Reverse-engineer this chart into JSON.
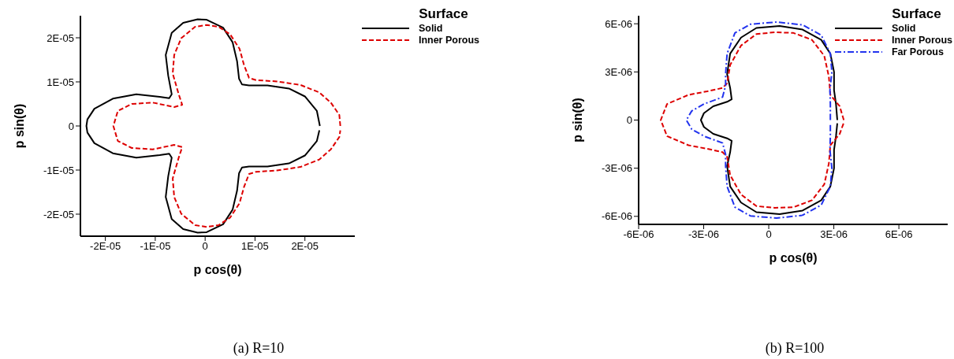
{
  "chart_data": [
    {
      "type": "line",
      "xlabel": "p cos(θ)",
      "ylabel": "p sin(θ)",
      "legend_title": "Surface",
      "legend": "top right",
      "annotations": [
        "(a) R=10"
      ],
      "xlim": [
        -2.5e-05,
        3e-05
      ],
      "ylim": [
        -2.5e-05,
        2.5e-05
      ],
      "xticks": [
        {
          "value": -2e-05,
          "label": "-2E-05"
        },
        {
          "value": -1e-05,
          "label": "-1E-05"
        },
        0,
        {
          "value": 1e-05,
          "label": "1E-05"
        },
        {
          "value": 2e-05,
          "label": "2E-05"
        }
      ],
      "yticks": [
        {
          "value": -2e-05,
          "label": "-2E-05"
        },
        {
          "value": -1e-05,
          "label": "-1E-05"
        },
        0,
        {
          "value": 1e-05,
          "label": "1E-05"
        },
        {
          "value": 2e-05,
          "label": "2E-05"
        }
      ],
      "series": [
        {
          "name": "Solid",
          "color": "#000000",
          "line_style": "solid",
          "x": [
            2.3e-05,
            2.24e-05,
            2e-05,
            1.68e-05,
            1.25e-05,
            8.8e-06,
            7.4e-06,
            6.8e-06,
            6.4e-06,
            5.5e-06,
            3.6e-06,
            3e-07,
            -1.5e-06,
            -4.4e-06,
            -6.7e-06,
            -7.9e-06,
            -7.4e-06,
            -6.7e-06,
            -7.2e-06,
            -9.1e-06,
            -1.38e-05,
            -1.85e-05,
            -2.22e-05,
            -2.36e-05,
            -2.38e-05,
            -2.36e-05,
            -2.22e-05,
            -1.85e-05,
            -1.38e-05,
            -9.1e-06,
            -7.2e-06,
            -6.7e-06,
            -7.4e-06,
            -7.9e-06,
            -6.7e-06,
            -4.4e-06,
            -1.5e-06,
            3e-07,
            3.6e-06,
            5.5e-06,
            6.4e-06,
            6.8e-06,
            7.4e-06,
            8.8e-06,
            1.25e-05,
            1.68e-05,
            2e-05,
            2.24e-05,
            2.29e-05
          ],
          "values": [
            0,
            3.4e-06,
            6.7e-06,
            8.5e-06,
            9.2e-06,
            9.2e-06,
            9.4e-06,
            1.07e-05,
            1.47e-05,
            1.9e-05,
            2.23e-05,
            2.41e-05,
            2.42e-05,
            2.34e-05,
            2.11e-05,
            1.61e-05,
            1.14e-05,
            7.2e-06,
            6.3e-06,
            6.6e-06,
            7.2e-06,
            6.2e-06,
            3.9e-06,
            1.5e-06,
            0,
            -1.5e-06,
            -3.9e-06,
            -6.2e-06,
            -7.2e-06,
            -6.6e-06,
            -6.3e-06,
            -7.2e-06,
            -1.14e-05,
            -1.61e-05,
            -2.11e-05,
            -2.34e-05,
            -2.42e-05,
            -2.41e-05,
            -2.23e-05,
            -1.9e-05,
            -1.47e-05,
            -1.07e-05,
            -9.4e-06,
            -9.2e-06,
            -9.2e-06,
            -8.5e-06,
            -6.7e-06,
            -3.4e-06,
            -1e-06
          ]
        },
        {
          "name": "Inner Porous",
          "color": "#dd0000",
          "line_style": "dashed",
          "x": [
            2.71e-05,
            2.69e-05,
            2.52e-05,
            2.29e-05,
            1.91e-05,
            1.44e-05,
            1.02e-05,
            8.8e-06,
            7.8e-06,
            6.9e-06,
            5e-06,
            2.7e-06,
            3e-07,
            -2e-06,
            -4.8e-06,
            -6.2e-06,
            -6.5e-06,
            -5.3e-06,
            -4.6e-06,
            -6.2e-06,
            -1.05e-05,
            -1.47e-05,
            -1.75e-05,
            -1.84e-05,
            -1.75e-05,
            -1.47e-05,
            -1.05e-05,
            -6.2e-06,
            -4.6e-06,
            -5.3e-06,
            -6.5e-06,
            -6.2e-06,
            -4.8e-06,
            -2e-06,
            3e-07,
            2.7e-06,
            5e-06,
            6.9e-06,
            7.8e-06,
            8.8e-06,
            1.02e-05,
            1.44e-05,
            1.91e-05,
            2.29e-05,
            2.52e-05,
            2.69e-05,
            2.71e-05
          ],
          "values": [
            0,
            2.5e-06,
            5.3e-06,
            7.6e-06,
            9.3e-06,
            1.01e-05,
            1.04e-05,
            1.09e-05,
            1.38e-05,
            1.75e-05,
            2.08e-05,
            2.25e-05,
            2.29e-05,
            2.25e-05,
            1.99e-05,
            1.61e-05,
            1.19e-05,
            7.2e-06,
            4.8e-06,
            4.3e-06,
            5.3e-06,
            5e-06,
            3.4e-06,
            0,
            -3.4e-06,
            -5e-06,
            -5.3e-06,
            -4.3e-06,
            -4.8e-06,
            -7.2e-06,
            -1.19e-05,
            -1.61e-05,
            -1.99e-05,
            -2.25e-05,
            -2.29e-05,
            -2.25e-05,
            -2.08e-05,
            -1.75e-05,
            -1.38e-05,
            -1.09e-05,
            -1.04e-05,
            -1.01e-05,
            -9.3e-06,
            -7.6e-06,
            -5.3e-06,
            -2.5e-06,
            -1e-06
          ]
        }
      ]
    },
    {
      "type": "line",
      "xlabel": "p cos(θ)",
      "ylabel": "p sin(θ)",
      "legend_title": "Surface",
      "legend": "top right",
      "annotations": [
        "(b) R=100"
      ],
      "xlim": [
        -6e-06,
        8.25e-06
      ],
      "ylim": [
        -6.5e-06,
        6.5e-06
      ],
      "xticks": [
        {
          "value": -6e-06,
          "label": "-6E-06"
        },
        {
          "value": -3e-06,
          "label": "-3E-06"
        },
        0,
        {
          "value": 3e-06,
          "label": "3E-06"
        },
        {
          "value": 6e-06,
          "label": "6E-06"
        }
      ],
      "yticks": [
        {
          "value": -6e-06,
          "label": "-6E-06"
        },
        {
          "value": -3e-06,
          "label": "-3E-06"
        },
        0,
        {
          "value": 3e-06,
          "label": "3E-06"
        },
        {
          "value": 6e-06,
          "label": "6E-06"
        }
      ],
      "series": [
        {
          "name": "Solid",
          "color": "#000000",
          "line_style": "solid",
          "x": [
            3.16e-06,
            3.1e-06,
            3.01e-06,
            3.01e-06,
            2.84e-06,
            2.42e-06,
            1.56e-06,
            5e-07,
            -5.7e-07,
            -1.28e-06,
            -1.78e-06,
            -1.92e-06,
            -1.78e-06,
            -1.71e-06,
            -1.92e-06,
            -2.56e-06,
            -2.99e-06,
            -3.13e-06,
            -2.99e-06,
            -2.56e-06,
            -1.92e-06,
            -1.71e-06,
            -1.78e-06,
            -1.92e-06,
            -1.78e-06,
            -1.28e-06,
            -5.7e-07,
            5e-07,
            1.56e-06,
            2.42e-06,
            2.84e-06,
            3.01e-06,
            3.01e-06,
            3.1e-06,
            3.16e-06
          ],
          "values": [
            0,
            1e-06,
            1.86e-06,
            3e-06,
            4.14e-06,
            5e-06,
            5.64e-06,
            5.86e-06,
            5.74e-06,
            5.14e-06,
            4.14e-06,
            2.86e-06,
            2e-06,
            1.29e-06,
            1.14e-06,
            8.6e-07,
            4.3e-07,
            0,
            -4.3e-07,
            -8.6e-07,
            -1.14e-06,
            -1.29e-06,
            -2e-06,
            -2.86e-06,
            -4.14e-06,
            -5.14e-06,
            -5.74e-06,
            -5.86e-06,
            -5.64e-06,
            -5e-06,
            -4.14e-06,
            -3e-06,
            -1.86e-06,
            -1e-06,
            -2e-07
          ]
        },
        {
          "name": "Inner Porous",
          "color": "#dd0000",
          "line_style": "dashed",
          "x": [
            3.46e-06,
            3.27e-06,
            2.84e-06,
            2.77e-06,
            2.56e-06,
            1.99e-06,
            1.14e-06,
            2.8e-07,
            -5.7e-07,
            -1.28e-06,
            -1.78e-06,
            -1.92e-06,
            -2.13e-06,
            -2.84e-06,
            -3.7e-06,
            -4.69e-06,
            -4.98e-06,
            -4.69e-06,
            -3.7e-06,
            -2.84e-06,
            -2.13e-06,
            -1.92e-06,
            -1.78e-06,
            -1.28e-06,
            -5.7e-07,
            2.8e-07,
            1.14e-06,
            1.99e-06,
            2.56e-06,
            2.77e-06,
            2.84e-06,
            3.27e-06,
            3.45e-06
          ],
          "values": [
            0,
            8.6e-07,
            1.57e-06,
            2.71e-06,
            4e-06,
            5e-06,
            5.43e-06,
            5.47e-06,
            5.36e-06,
            4.64e-06,
            3.43e-06,
            2.29e-06,
            2e-06,
            1.79e-06,
            1.57e-06,
            1e-06,
            0,
            -1e-06,
            -1.57e-06,
            -1.79e-06,
            -2e-06,
            -2.29e-06,
            -3.43e-06,
            -4.64e-06,
            -5.36e-06,
            -5.47e-06,
            -5.43e-06,
            -5e-06,
            -4e-06,
            -2.71e-06,
            -1.57e-06,
            -8.6e-07,
            -2e-07
          ]
        },
        {
          "name": "Far Porous",
          "color": "#2233ee",
          "line_style": "dashdot",
          "x": [
            2.84e-06,
            2.84e-06,
            2.82e-06,
            2.91e-06,
            2.84e-06,
            2.42e-06,
            1.56e-06,
            3.6e-07,
            -8.5e-07,
            -1.56e-06,
            -1.92e-06,
            -1.99e-06,
            -1.99e-06,
            -2.13e-06,
            -2.99e-06,
            -3.55e-06,
            -3.8e-06,
            -3.55e-06,
            -2.99e-06,
            -2.13e-06,
            -1.99e-06,
            -1.99e-06,
            -1.92e-06,
            -1.56e-06,
            -8.5e-07,
            3.6e-07,
            1.56e-06,
            2.42e-06,
            2.84e-06,
            2.91e-06,
            2.82e-06,
            2.84e-06,
            2.84e-06
          ],
          "values": [
            0,
            1e-06,
            1.86e-06,
            3e-06,
            4.14e-06,
            5.29e-06,
            5.93e-06,
            6.11e-06,
            5.97e-06,
            5.43e-06,
            4.14e-06,
            2.86e-06,
            2.14e-06,
            1.43e-06,
            1e-06,
            5.7e-07,
            0,
            -5.7e-07,
            -1e-06,
            -1.43e-06,
            -2.14e-06,
            -2.86e-06,
            -4.14e-06,
            -5.43e-06,
            -5.97e-06,
            -6.11e-06,
            -5.93e-06,
            -5.29e-06,
            -4.14e-06,
            -3e-06,
            -1.86e-06,
            -1e-06,
            -2e-07
          ]
        }
      ]
    }
  ]
}
